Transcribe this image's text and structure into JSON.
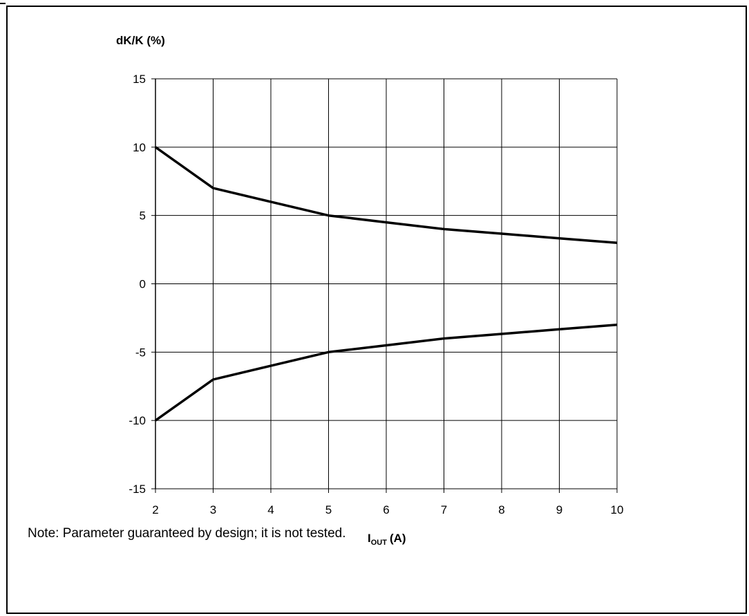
{
  "chart_data": {
    "type": "line",
    "ylabel": "dK/K (%)",
    "xlabel_main": "I",
    "xlabel_sub": "OUT",
    "xlabel_unit": "(A)",
    "x_ticks": [
      2,
      3,
      4,
      5,
      6,
      7,
      8,
      9,
      10
    ],
    "y_ticks": [
      15,
      10,
      5,
      0,
      -5,
      -10,
      -15
    ],
    "xlim": [
      2,
      10
    ],
    "ylim": [
      -15,
      15
    ],
    "grid": true,
    "series": [
      {
        "x": [
          2,
          3,
          4,
          5,
          6,
          7,
          8,
          9,
          10
        ],
        "values": [
          10,
          7,
          6,
          5,
          4.5,
          4,
          3.67,
          3.33,
          3
        ]
      },
      {
        "x": [
          2,
          3,
          4,
          5,
          6,
          7,
          8,
          9,
          10
        ],
        "values": [
          -10,
          -7,
          -6,
          -5,
          -4.5,
          -4,
          -3.67,
          -3.33,
          -3
        ]
      }
    ],
    "line_color": "#000000"
  },
  "note": "Note: Parameter guaranteed by design; it is not tested."
}
